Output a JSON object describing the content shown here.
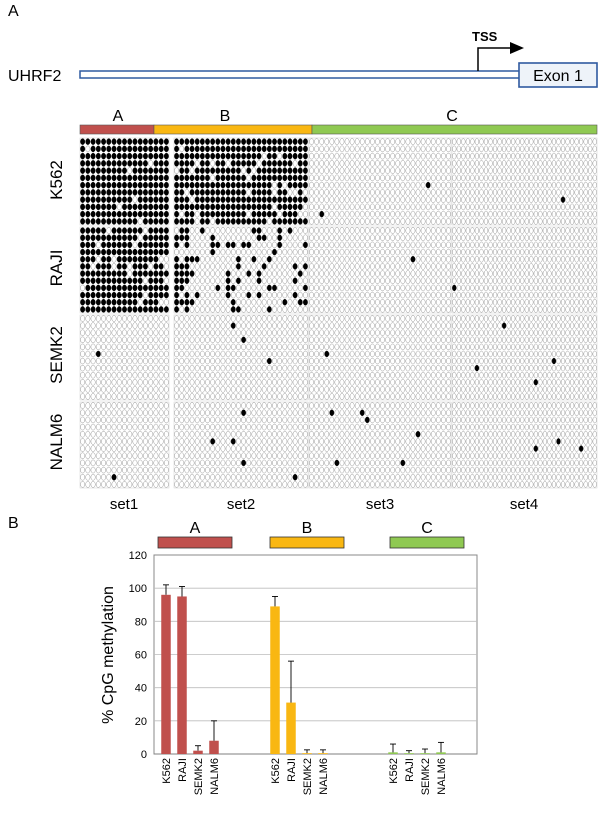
{
  "panel_a": {
    "label": "A",
    "gene": "UHRF2",
    "tss": "TSS",
    "exon": "Exon 1",
    "regions": [
      {
        "name": "A",
        "color": "#c0504d"
      },
      {
        "name": "B",
        "color": "#f9b712"
      },
      {
        "name": "C",
        "color": "#8fc952"
      }
    ],
    "cell_lines": [
      "K562",
      "RAJI",
      "SEMK2",
      "NALM6"
    ],
    "sets": [
      "set1",
      "set2",
      "set3",
      "set4"
    ],
    "methylation_fill": "#000000"
  },
  "panel_b": {
    "label": "B",
    "chart_data": {
      "type": "bar",
      "ylabel": "% CpG methylation",
      "ylim": [
        0,
        120
      ],
      "yticks": [
        0,
        20,
        40,
        60,
        80,
        100,
        120
      ],
      "grid": true,
      "groups": [
        {
          "name": "A",
          "color": "#c0504d",
          "categories": [
            "K562",
            "RAJI",
            "SEMK2",
            "NALM6"
          ],
          "values": [
            96,
            95,
            2,
            8
          ],
          "errors": [
            6,
            6,
            3,
            12
          ]
        },
        {
          "name": "B",
          "color": "#f9b712",
          "categories": [
            "K562",
            "RAJI",
            "SEMK2",
            "NALM6"
          ],
          "values": [
            89,
            31,
            0.5,
            0.5
          ],
          "errors": [
            6,
            25,
            2,
            2
          ]
        },
        {
          "name": "C",
          "color": "#8fc952",
          "categories": [
            "K562",
            "RAJI",
            "SEMK2",
            "NALM6"
          ],
          "values": [
            1,
            0.5,
            0.5,
            1
          ],
          "errors": [
            5,
            1.5,
            2.5,
            6
          ]
        }
      ]
    }
  }
}
